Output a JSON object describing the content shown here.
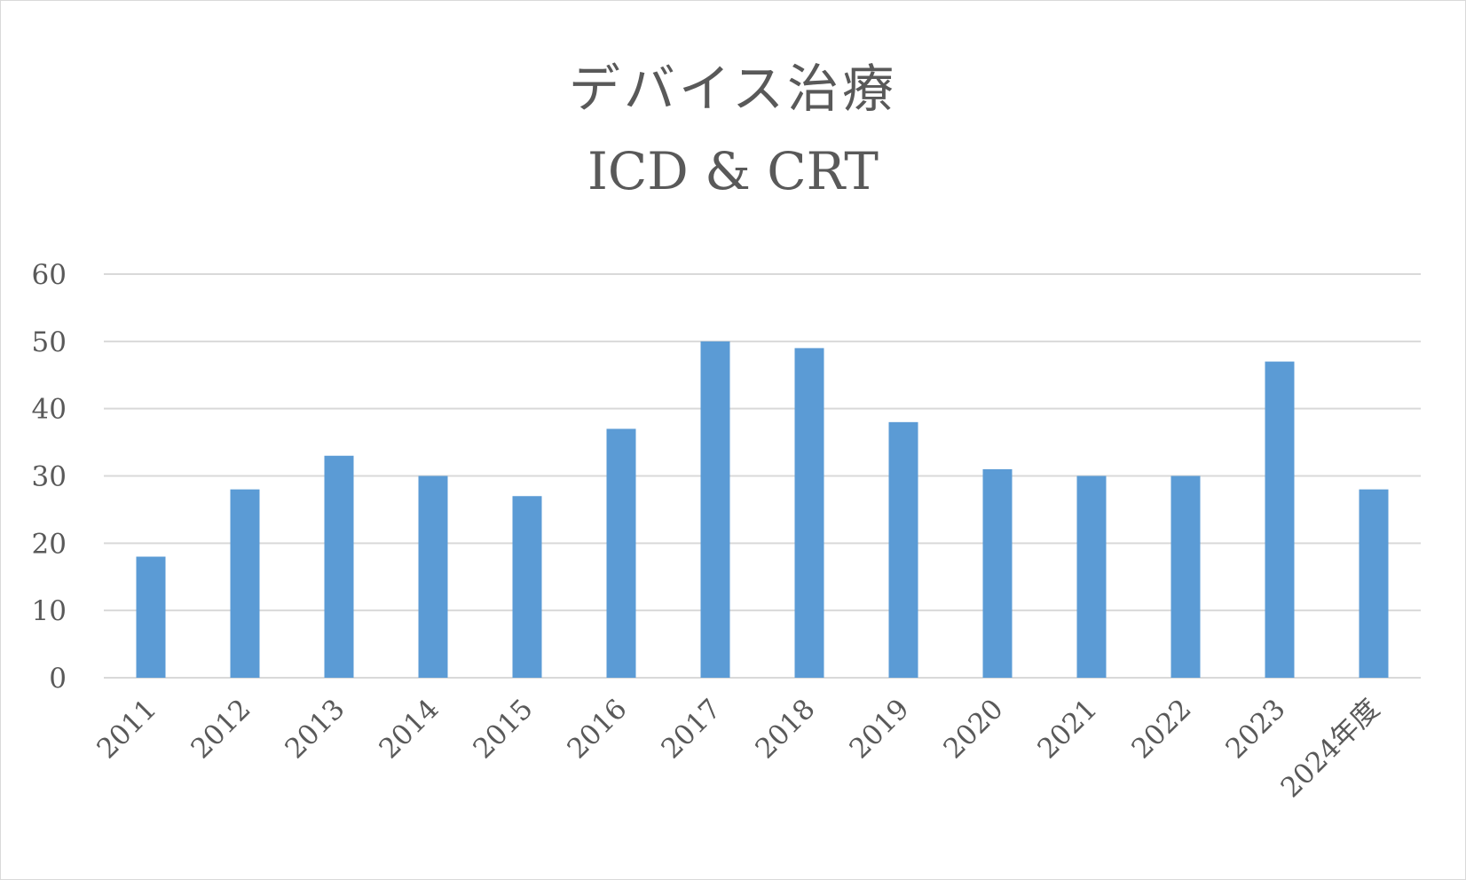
{
  "chart_data": {
    "type": "bar",
    "title": "デバイス治療",
    "subtitle": "ICD & CRT",
    "categories": [
      "2011",
      "2012",
      "2013",
      "2014",
      "2015",
      "2016",
      "2017",
      "2018",
      "2019",
      "2020",
      "2021",
      "2022",
      "2023",
      "2024年度"
    ],
    "values": [
      18,
      28,
      33,
      30,
      27,
      37,
      50,
      49,
      38,
      31,
      30,
      30,
      47,
      28
    ],
    "ylim": [
      0,
      60
    ],
    "yticks": [
      "0",
      "10",
      "20",
      "30",
      "40",
      "50",
      "60"
    ],
    "xlabel": "",
    "ylabel": "",
    "grid": true,
    "legend": "none",
    "bar_color": "#5b9bd5"
  }
}
